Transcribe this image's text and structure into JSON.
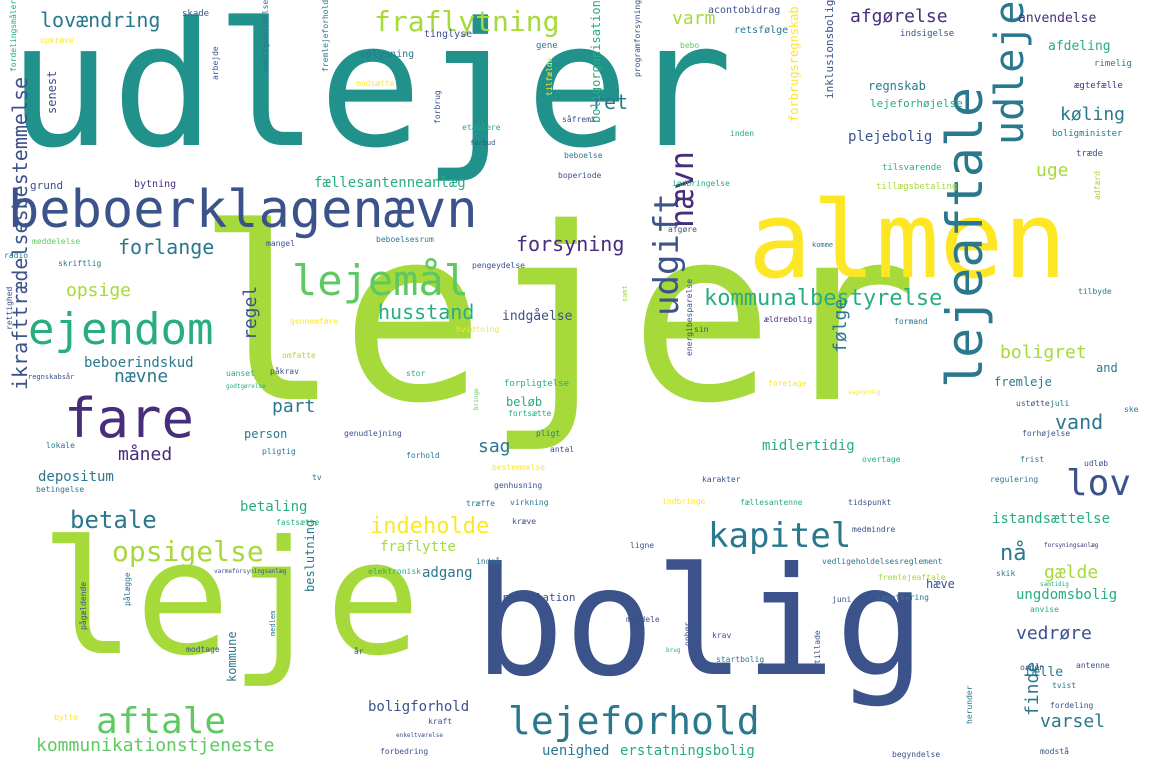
{
  "palette": {
    "lime": "#a6d93a",
    "green": "#5ec962",
    "teal": "#21918c",
    "tealdark": "#2a788e",
    "blue": "#3b528b",
    "purple": "#472d7b",
    "yellow": "#fde725",
    "aqua": "#27ad81"
  },
  "words": [
    {
      "text": "lejer",
      "color": "#a6d93a"
    },
    {
      "text": "udlejer",
      "color": "#21918c"
    },
    {
      "text": "bolig",
      "color": "#3b528b"
    },
    {
      "text": "leje",
      "color": "#a6d93a"
    },
    {
      "text": "almen",
      "color": "#fde725"
    },
    {
      "text": "beboerklagenævn",
      "color": "#3b528b"
    },
    {
      "text": "lejeaftale",
      "color": "#2a788e"
    },
    {
      "text": "udleje",
      "color": "#2a788e"
    },
    {
      "text": "fare",
      "color": "#472d7b"
    },
    {
      "text": "ejendom",
      "color": "#27ad81"
    },
    {
      "text": "lejemål",
      "color": "#5ec962"
    },
    {
      "text": "lejeforhold",
      "color": "#2a788e"
    },
    {
      "text": "aftale",
      "color": "#5ec962"
    },
    {
      "text": "kapitel",
      "color": "#2a788e"
    },
    {
      "text": "opsigelse",
      "color": "#a6d93a"
    },
    {
      "text": "udgift",
      "color": "#3b528b"
    },
    {
      "text": "lov",
      "color": "#3b528b"
    },
    {
      "text": "nævn",
      "color": "#472d7b"
    },
    {
      "text": "kommunalbestyrelse",
      "color": "#27ad81"
    },
    {
      "text": "fraflytning",
      "color": "#a6d93a"
    },
    {
      "text": "forsyning",
      "color": "#472d7b"
    },
    {
      "text": "ikrafttrædelsesbestemmelse",
      "color": "#3b528b"
    },
    {
      "text": "betale",
      "color": "#2a788e"
    },
    {
      "text": "indeholde",
      "color": "#fde725"
    },
    {
      "text": "kommunikationstjeneste",
      "color": "#5ec962"
    },
    {
      "text": "forlange",
      "color": "#2a788e"
    },
    {
      "text": "lovændring",
      "color": "#2a788e"
    },
    {
      "text": "opsige",
      "color": "#a6d93a"
    },
    {
      "text": "husstand",
      "color": "#27ad81"
    },
    {
      "text": "boligret",
      "color": "#a6d93a"
    },
    {
      "text": "afgørelse",
      "color": "#472d7b"
    },
    {
      "text": "køling",
      "color": "#2a788e"
    },
    {
      "text": "varm",
      "color": "#a6d93a"
    },
    {
      "text": "ret",
      "color": "#2a788e"
    },
    {
      "text": "uge",
      "color": "#a6d93a"
    },
    {
      "text": "følge",
      "color": "#2a788e"
    },
    {
      "text": "vand",
      "color": "#2a788e"
    },
    {
      "text": "sag",
      "color": "#2a788e"
    },
    {
      "text": "måned",
      "color": "#472d7b"
    },
    {
      "text": "nævne",
      "color": "#2a788e"
    },
    {
      "text": "regel",
      "color": "#3b528b"
    },
    {
      "text": "part",
      "color": "#2a788e"
    },
    {
      "text": "varsel",
      "color": "#2a788e"
    },
    {
      "text": "finde",
      "color": "#2a788e"
    },
    {
      "text": "nå",
      "color": "#2a788e"
    },
    {
      "text": "gælde",
      "color": "#a6d93a"
    },
    {
      "text": "vedrøre",
      "color": "#3b528b"
    },
    {
      "text": "fremleje",
      "color": "#2a788e"
    },
    {
      "text": "midlertidig",
      "color": "#27ad81"
    },
    {
      "text": "person",
      "color": "#2a788e"
    },
    {
      "text": "depositum",
      "color": "#2a788e"
    },
    {
      "text": "beboerindskud",
      "color": "#2a788e"
    },
    {
      "text": "fraflytte",
      "color": "#a6d93a"
    },
    {
      "text": "adgang",
      "color": "#2a788e"
    },
    {
      "text": "betaling",
      "color": "#27ad81"
    },
    {
      "text": "ungdomsbolig",
      "color": "#27ad81"
    },
    {
      "text": "istandsættelse",
      "color": "#27ad81"
    },
    {
      "text": "erstatningsbolig",
      "color": "#27ad81"
    },
    {
      "text": "boligforhold",
      "color": "#3b528b"
    },
    {
      "text": "uenighed",
      "color": "#2a788e"
    },
    {
      "text": "fællesantenneanlæg",
      "color": "#27ad81"
    },
    {
      "text": "plejebolig",
      "color": "#3b528b"
    },
    {
      "text": "regnskab",
      "color": "#2a788e"
    },
    {
      "text": "anvendelse",
      "color": "#472d7b"
    },
    {
      "text": "afdeling",
      "color": "#27ad81"
    },
    {
      "text": "boligorganisation",
      "color": "#27ad81"
    },
    {
      "text": "forbrugsregnskab",
      "color": "#fde725"
    },
    {
      "text": "senest",
      "color": "#3b528b"
    },
    {
      "text": "indgåelse",
      "color": "#3b528b"
    },
    {
      "text": "beløb",
      "color": "#27ad81"
    },
    {
      "text": "fælle",
      "color": "#2a788e"
    },
    {
      "text": "and",
      "color": "#2a788e"
    },
    {
      "text": "hæve",
      "color": "#3b528b"
    },
    {
      "text": "kommune",
      "color": "#2a788e"
    },
    {
      "text": "beslutning",
      "color": "#2a788e"
    },
    {
      "text": "installation",
      "color": "#3b528b"
    },
    {
      "text": "lejeforhøjelse",
      "color": "#27ad81"
    },
    {
      "text": "inklusionsbolig",
      "color": "#3b528b"
    },
    {
      "text": "grund",
      "color": "#3b528b"
    },
    {
      "text": "bytning",
      "color": "#472d7b"
    },
    {
      "text": "skade",
      "color": "#3b528b"
    },
    {
      "text": "tinglyse",
      "color": "#3b528b"
    },
    {
      "text": "oplysning",
      "color": "#2a788e"
    },
    {
      "text": "gene",
      "color": "#2a788e"
    },
    {
      "text": "bebo",
      "color": "#5ec962"
    },
    {
      "text": "acontobidrag",
      "color": "#3b528b"
    },
    {
      "text": "retsfølge",
      "color": "#2a788e"
    },
    {
      "text": "indsigelse",
      "color": "#3b528b"
    },
    {
      "text": "rimelig",
      "color": "#2a788e"
    },
    {
      "text": "ægtefælle",
      "color": "#472d7b"
    },
    {
      "text": "boligminister",
      "color": "#2a788e"
    },
    {
      "text": "træde",
      "color": "#3b528b"
    },
    {
      "text": "tilsvarende",
      "color": "#27ad81"
    },
    {
      "text": "tillægsbetaling",
      "color": "#a6d93a"
    },
    {
      "text": "adfærd",
      "color": "#a6d93a"
    },
    {
      "text": "opkræve",
      "color": "#fde725"
    },
    {
      "text": "fordelingsmåler",
      "color": "#27ad81"
    },
    {
      "text": "vedligeholdelse",
      "color": "#2a788e"
    },
    {
      "text": "fremlejeforhold",
      "color": "#2a788e"
    },
    {
      "text": "arbejde",
      "color": "#3b528b"
    },
    {
      "text": "modsætte",
      "color": "#fde725"
    },
    {
      "text": "etablere",
      "color": "#27ad81"
    },
    {
      "text": "forbrug",
      "color": "#3b528b"
    },
    {
      "text": "forbud",
      "color": "#3b528b"
    },
    {
      "text": "tilfælde",
      "color": "#fde725"
    },
    {
      "text": "såfremt",
      "color": "#3b528b"
    },
    {
      "text": "programforsyning",
      "color": "#3b528b"
    },
    {
      "text": "beboelse",
      "color": "#2a788e"
    },
    {
      "text": "boperiode",
      "color": "#3b528b"
    },
    {
      "text": "indbringelse",
      "color": "#27ad81"
    },
    {
      "text": "inden",
      "color": "#27ad81"
    },
    {
      "text": "meddelelse",
      "color": "#5ec962"
    },
    {
      "text": "radio",
      "color": "#2a788e"
    },
    {
      "text": "skriftlig",
      "color": "#2a788e"
    },
    {
      "text": "mangel",
      "color": "#3b528b"
    },
    {
      "text": "beboelsesrum",
      "color": "#2a788e"
    },
    {
      "text": "afgøre",
      "color": "#3b528b"
    },
    {
      "text": "komme",
      "color": "#2a788e"
    },
    {
      "text": "pengeydelse",
      "color": "#3b528b"
    },
    {
      "text": "tilbyde",
      "color": "#2a788e"
    },
    {
      "text": "formand",
      "color": "#2a788e"
    },
    {
      "text": "ældrebolig",
      "color": "#472d7b"
    },
    {
      "text": "sin",
      "color": "#3b528b"
    },
    {
      "text": "samt",
      "color": "#a6d93a"
    },
    {
      "text": "gennemføre",
      "color": "#fde725"
    },
    {
      "text": "hvidtning",
      "color": "#fde725"
    },
    {
      "text": "omfatte",
      "color": "#a6d93a"
    },
    {
      "text": "uanset",
      "color": "#27ad81"
    },
    {
      "text": "påkrav",
      "color": "#3b528b"
    },
    {
      "text": "rettighed",
      "color": "#3b528b"
    },
    {
      "text": "regnskabsår",
      "color": "#3b528b"
    },
    {
      "text": "godtgørelse",
      "color": "#27ad81"
    },
    {
      "text": "stor",
      "color": "#27ad81"
    },
    {
      "text": "forpligtelse",
      "color": "#27ad81"
    },
    {
      "text": "energibesparelse",
      "color": "#3b528b"
    },
    {
      "text": "foretage",
      "color": "#fde725"
    },
    {
      "text": "sagkyndig",
      "color": "#fde725"
    },
    {
      "text": "ustøtte",
      "color": "#3b528b"
    },
    {
      "text": "juli",
      "color": "#2a788e"
    },
    {
      "text": "ske",
      "color": "#2a788e"
    },
    {
      "text": "forhøjelse",
      "color": "#3b528b"
    },
    {
      "text": "lokale",
      "color": "#2a788e"
    },
    {
      "text": "genudlejning",
      "color": "#3b528b"
    },
    {
      "text": "pligtig",
      "color": "#2a788e"
    },
    {
      "text": "pligt",
      "color": "#2a788e"
    },
    {
      "text": "fortsætte",
      "color": "#27ad81"
    },
    {
      "text": "bringe",
      "color": "#5ec962"
    },
    {
      "text": "antal",
      "color": "#3b528b"
    },
    {
      "text": "forhold",
      "color": "#2a788e"
    },
    {
      "text": "bestemmelse",
      "color": "#fde725"
    },
    {
      "text": "overtage",
      "color": "#27ad81"
    },
    {
      "text": "frist",
      "color": "#2a788e"
    },
    {
      "text": "udløb",
      "color": "#3b528b"
    },
    {
      "text": "regulering",
      "color": "#2a788e"
    },
    {
      "text": "betingelse",
      "color": "#2a788e"
    },
    {
      "text": "tv",
      "color": "#2a788e"
    },
    {
      "text": "genhusning",
      "color": "#3b528b"
    },
    {
      "text": "karakter",
      "color": "#3b528b"
    },
    {
      "text": "indbringe",
      "color": "#fde725"
    },
    {
      "text": "fællesantenne",
      "color": "#27ad81"
    },
    {
      "text": "tidspunkt",
      "color": "#3b528b"
    },
    {
      "text": "fastsætte",
      "color": "#27ad81"
    },
    {
      "text": "træffe",
      "color": "#2a788e"
    },
    {
      "text": "virkning",
      "color": "#2a788e"
    },
    {
      "text": "kræve",
      "color": "#3b528b"
    },
    {
      "text": "medmindre",
      "color": "#3b528b"
    },
    {
      "text": "ligne",
      "color": "#3b528b"
    },
    {
      "text": "vedligeholdelsesreglement",
      "color": "#2a788e"
    },
    {
      "text": "forsyningsanlæg",
      "color": "#472d7b"
    },
    {
      "text": "indgå",
      "color": "#2a788e"
    },
    {
      "text": "elektronisk",
      "color": "#27ad81"
    },
    {
      "text": "varmeforsyningsanlæg",
      "color": "#3b528b"
    },
    {
      "text": "fremlejeaftale",
      "color": "#a6d93a"
    },
    {
      "text": "skik",
      "color": "#2a788e"
    },
    {
      "text": "juni",
      "color": "#3b528b"
    },
    {
      "text": "tapetsering",
      "color": "#2a788e"
    },
    {
      "text": "anvise",
      "color": "#27ad81"
    },
    {
      "text": "samtidig",
      "color": "#27ad81"
    },
    {
      "text": "pålægge",
      "color": "#2a788e"
    },
    {
      "text": "pågældende",
      "color": "#3b528b"
    },
    {
      "text": "modtage",
      "color": "#3b528b"
    },
    {
      "text": "medlem",
      "color": "#2a788e"
    },
    {
      "text": "år",
      "color": "#3b528b"
    },
    {
      "text": "meddele",
      "color": "#3b528b"
    },
    {
      "text": "krav",
      "color": "#3b528b"
    },
    {
      "text": "ophør",
      "color": "#3b528b"
    },
    {
      "text": "brug",
      "color": "#27ad81"
    },
    {
      "text": "startbolig",
      "color": "#2a788e"
    },
    {
      "text": "tillade",
      "color": "#3b528b"
    },
    {
      "text": "orden",
      "color": "#3b528b"
    },
    {
      "text": "antenne",
      "color": "#3b528b"
    },
    {
      "text": "tvist",
      "color": "#2a788e"
    },
    {
      "text": "fordeling",
      "color": "#3b528b"
    },
    {
      "text": "herunder",
      "color": "#2a788e"
    },
    {
      "text": "bytte",
      "color": "#fde725"
    },
    {
      "text": "enkeltværelse",
      "color": "#3b528b"
    },
    {
      "text": "kraft",
      "color": "#3b528b"
    },
    {
      "text": "forbedring",
      "color": "#3b528b"
    },
    {
      "text": "begyndelse",
      "color": "#3b528b"
    },
    {
      "text": "modstå",
      "color": "#3b528b"
    }
  ]
}
